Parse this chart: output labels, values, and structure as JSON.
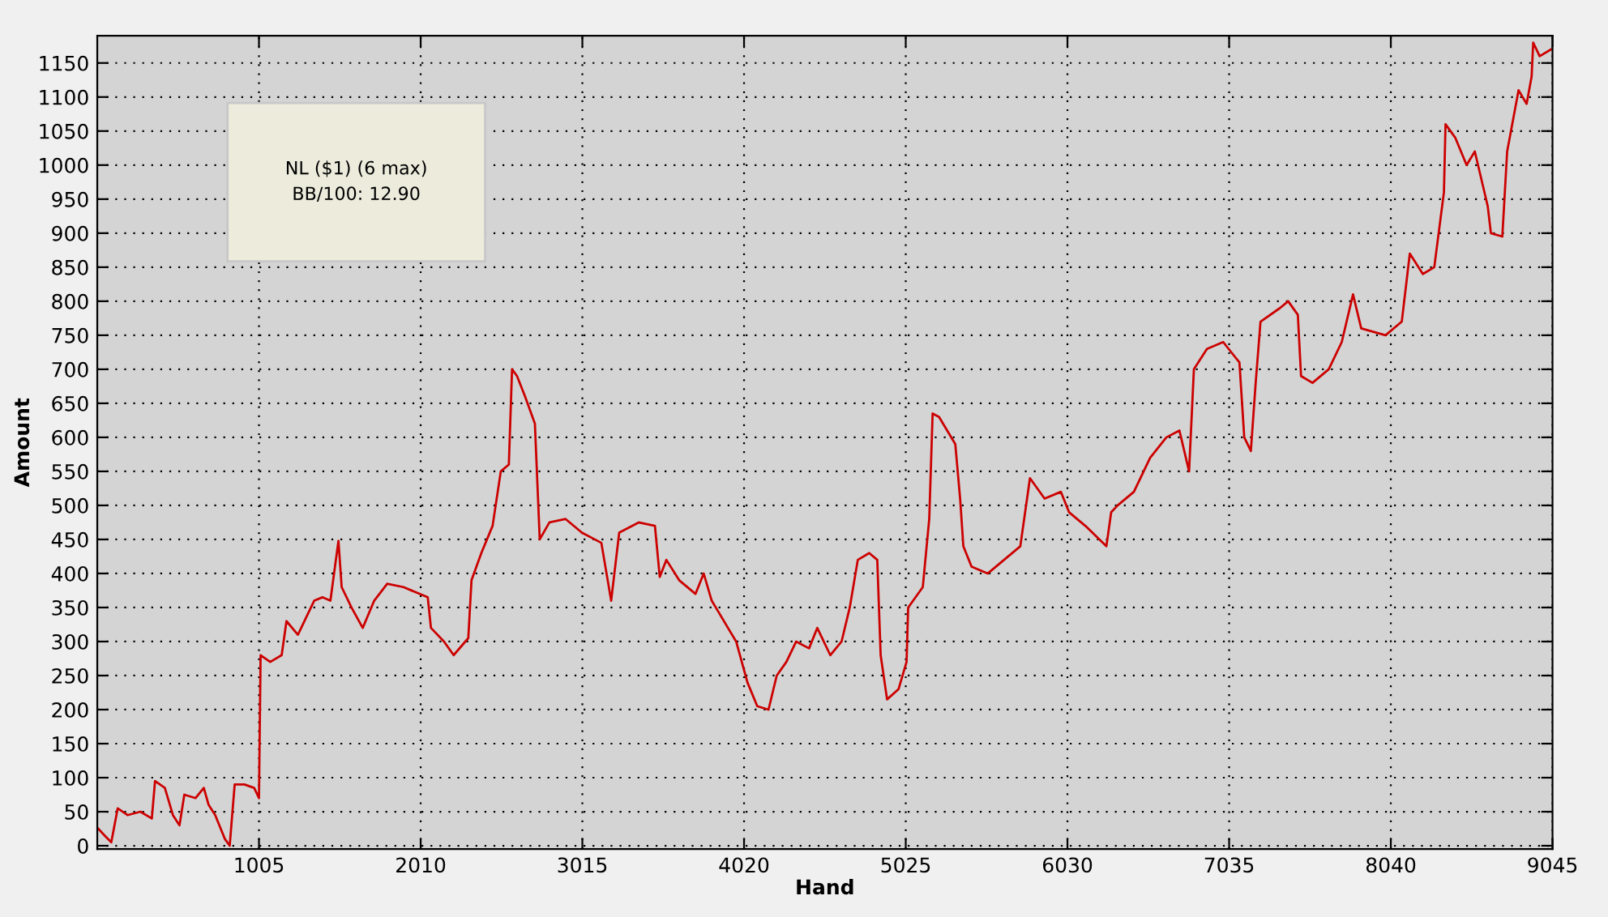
{
  "chart_data": {
    "type": "line",
    "xlabel": "Hand",
    "ylabel": "Amount",
    "annotations": [
      "NL ($1) (6 max)\nBB/100: 12.90"
    ],
    "xlim": [
      0,
      9045
    ],
    "xticks": [
      1005,
      2010,
      3015,
      4020,
      5025,
      6030,
      7035,
      8040,
      9045
    ],
    "ylim": [
      -5,
      1190
    ],
    "yticks": [
      0,
      50,
      100,
      150,
      200,
      250,
      300,
      350,
      400,
      450,
      500,
      550,
      600,
      650,
      700,
      750,
      800,
      850,
      900,
      950,
      1000,
      1050,
      1100,
      1150
    ],
    "grid": true,
    "line_style": "solid",
    "marker": "none",
    "series": [
      {
        "color": "#cc0000",
        "x": [
          6,
          46,
          87,
          127,
          188,
          268,
          339,
          359,
          420,
          470,
          511,
          541,
          611,
          662,
          692,
          733,
          793,
          823,
          854,
          914,
          975,
          1005,
          1015,
          1075,
          1146,
          1176,
          1247,
          1348,
          1399,
          1449,
          1499,
          1519,
          1580,
          1650,
          1721,
          1802,
          1903,
          2054,
          2074,
          2155,
          2215,
          2306,
          2326,
          2387,
          2457,
          2508,
          2558,
          2578,
          2609,
          2659,
          2720,
          2750,
          2810,
          2911,
          3012,
          3133,
          3194,
          3244,
          3365,
          3466,
          3496,
          3537,
          3617,
          3718,
          3769,
          3819,
          3870,
          3920,
          3971,
          4041,
          4102,
          4172,
          4223,
          4283,
          4344,
          4424,
          4475,
          4556,
          4626,
          4677,
          4727,
          4798,
          4848,
          4869,
          4909,
          4980,
          5030,
          5040,
          5131,
          5171,
          5192,
          5232,
          5333,
          5363,
          5383,
          5434,
          5535,
          5636,
          5737,
          5797,
          5888,
          5989,
          6040,
          6141,
          6272,
          6302,
          6342,
          6443,
          6544,
          6645,
          6726,
          6786,
          6816,
          6897,
          6998,
          7099,
          7129,
          7170,
          7200,
          7230,
          7351,
          7402,
          7462,
          7482,
          7553,
          7654,
          7735,
          7805,
          7856,
          8007,
          8108,
          8158,
          8239,
          8310,
          8370,
          8380,
          8441,
          8511,
          8562,
          8642,
          8662,
          8733,
          8763,
          8834,
          8884,
          8915,
          8925,
          8965,
          9036
        ],
        "values": [
          25,
          15,
          5,
          55,
          45,
          50,
          40,
          95,
          85,
          45,
          30,
          75,
          70,
          85,
          60,
          45,
          10,
          0,
          90,
          90,
          85,
          70,
          280,
          270,
          280,
          330,
          310,
          360,
          365,
          360,
          448,
          380,
          350,
          320,
          360,
          385,
          380,
          365,
          320,
          300,
          280,
          305,
          390,
          430,
          470,
          550,
          560,
          700,
          690,
          660,
          620,
          450,
          475,
          480,
          460,
          445,
          360,
          460,
          475,
          470,
          395,
          420,
          390,
          370,
          400,
          360,
          340,
          320,
          300,
          240,
          205,
          200,
          250,
          270,
          300,
          290,
          320,
          280,
          300,
          350,
          420,
          430,
          420,
          280,
          215,
          230,
          270,
          350,
          380,
          480,
          635,
          630,
          590,
          510,
          440,
          410,
          400,
          420,
          440,
          540,
          510,
          520,
          490,
          470,
          440,
          490,
          500,
          520,
          570,
          600,
          610,
          550,
          700,
          730,
          740,
          710,
          600,
          580,
          680,
          770,
          790,
          800,
          780,
          690,
          680,
          700,
          740,
          810,
          760,
          750,
          770,
          870,
          840,
          850,
          960,
          1060,
          1040,
          1000,
          1020,
          940,
          900,
          895,
          1020,
          1110,
          1090,
          1130,
          1180,
          1160,
          1170
        ]
      }
    ]
  }
}
